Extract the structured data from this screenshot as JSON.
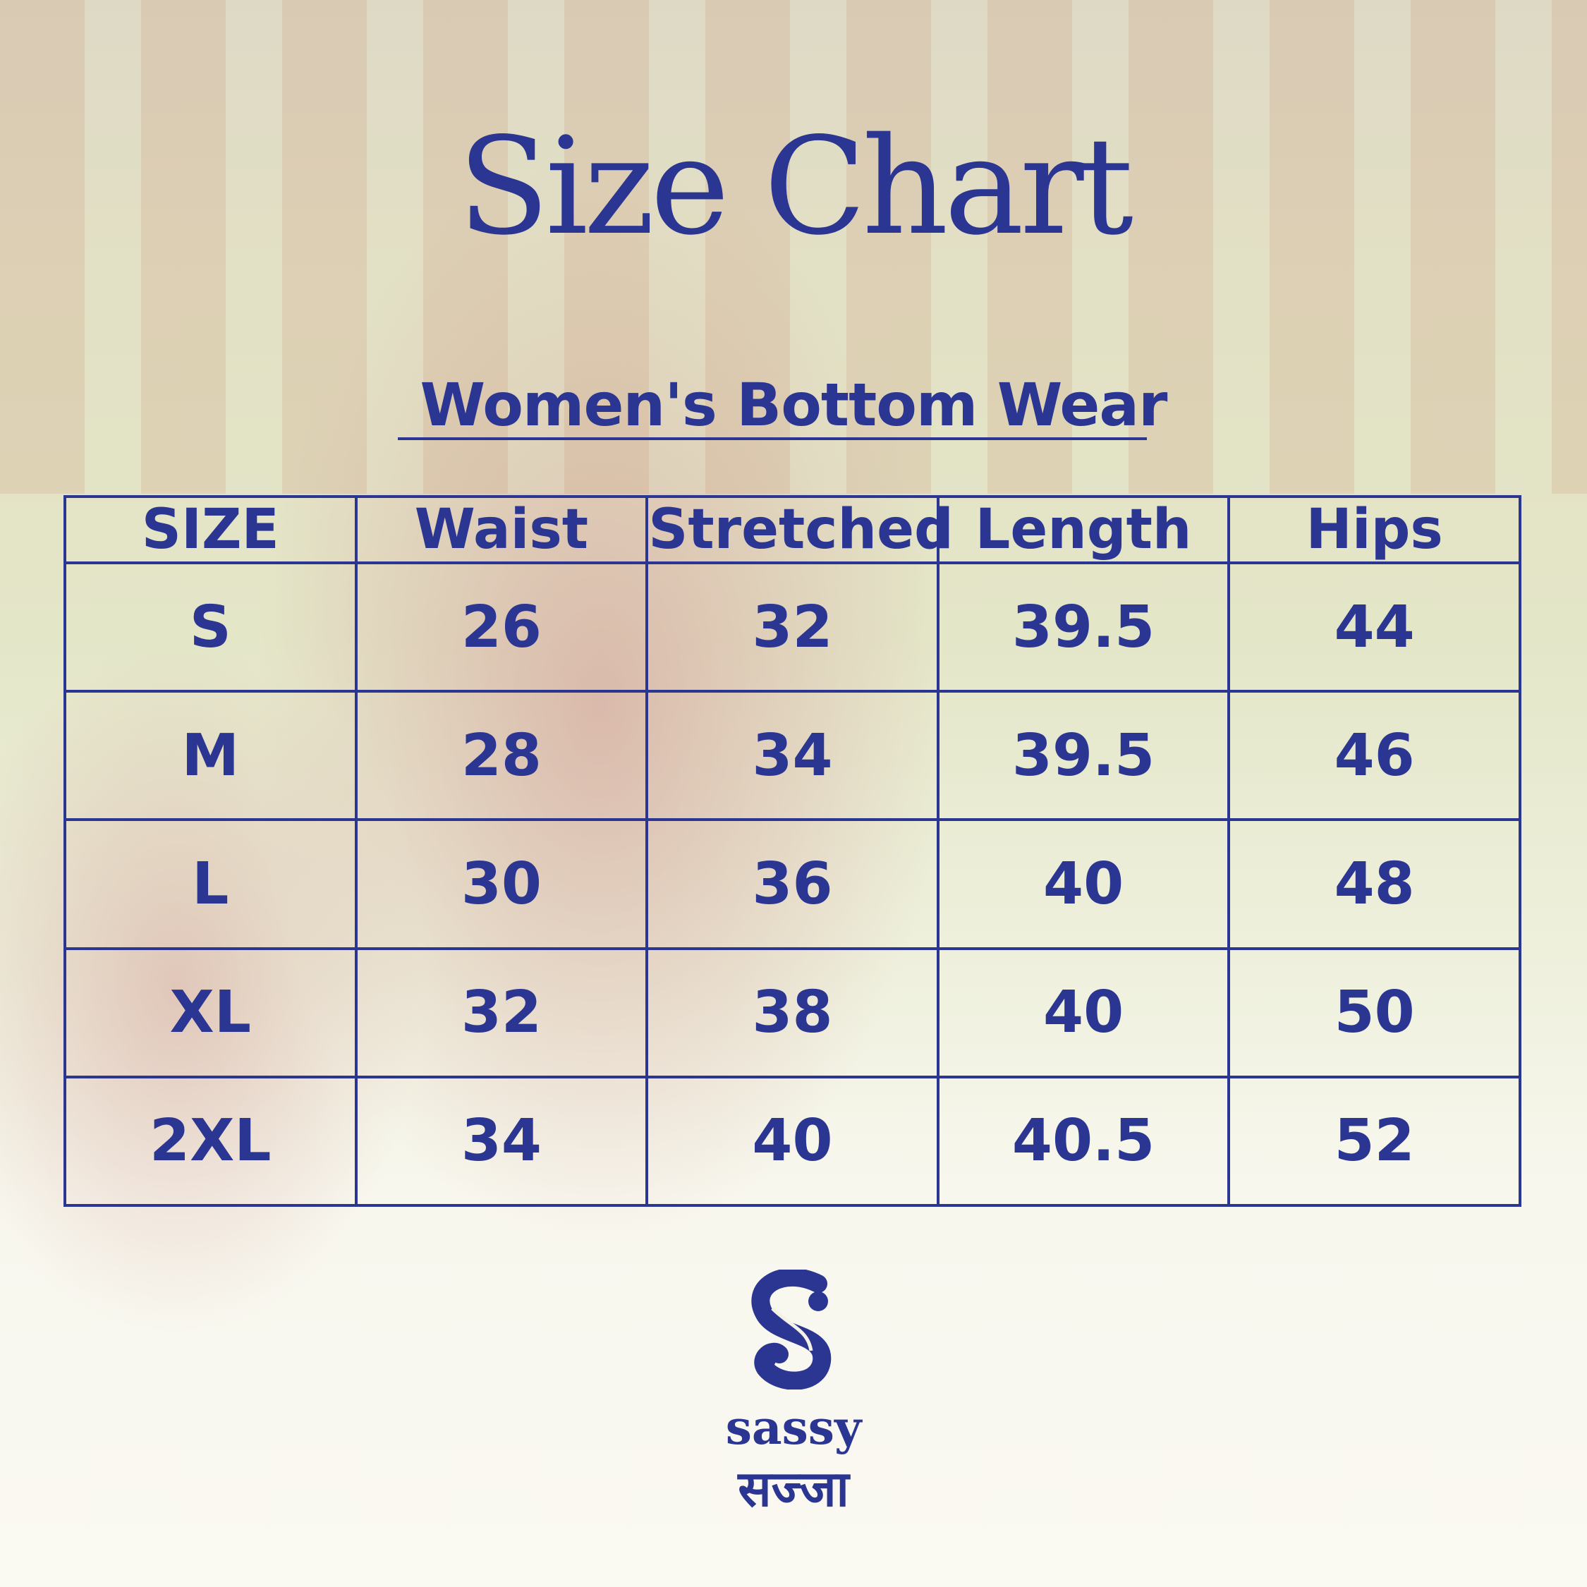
{
  "title": "Size Chart",
  "subtitle": "Women's Bottom Wear",
  "accent_color": "#2b3592",
  "table": {
    "headers": [
      "SIZE",
      "Waist",
      "Stretched",
      "Length",
      "Hips"
    ],
    "rows": [
      [
        "S",
        "26",
        "32",
        "39.5",
        "44"
      ],
      [
        "M",
        "28",
        "34",
        "39.5",
        "46"
      ],
      [
        "L",
        "30",
        "36",
        "40",
        "48"
      ],
      [
        "XL",
        "32",
        "38",
        "40",
        "50"
      ],
      [
        "2XL",
        "34",
        "40",
        "40.5",
        "52"
      ]
    ]
  },
  "brand": {
    "name": "sassy",
    "name_hindi": "सज्जा",
    "logo_icon": "peacock-s-monogram"
  }
}
